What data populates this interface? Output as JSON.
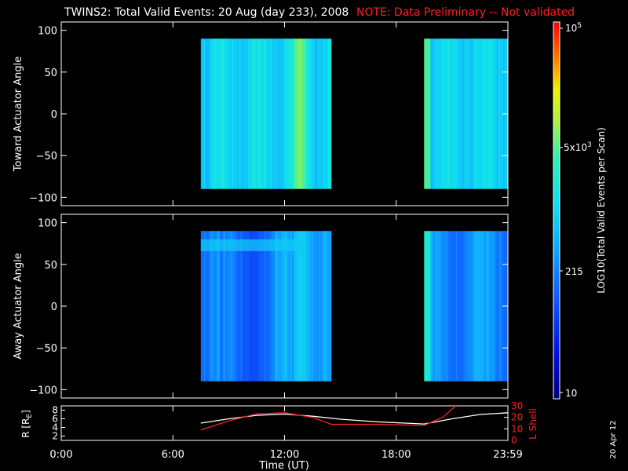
{
  "header": {
    "title": "TWINS2: Total Valid Events: 20 Aug (day 233), 2008",
    "note": "NOTE: Data Preliminary -- Not validated"
  },
  "side_date": "20 Apr 12",
  "colors": {
    "background": "#000000",
    "text": "#ffffff",
    "note": "#ff2020",
    "lshell": "#ff2020",
    "r_line": "#ffffff"
  },
  "chart_data": [
    {
      "type": "heatmap",
      "ylabel": "Toward Actuator Angle",
      "ylim": [
        -110,
        110
      ],
      "yticks": [
        "100",
        "50",
        "0",
        "−50",
        "−100"
      ],
      "xlim": [
        0,
        24
      ],
      "data_blocks": [
        {
          "x": [
            7.5,
            14.5
          ],
          "y": [
            -90,
            90
          ],
          "level": "≈ 1000–2000 events/scan, enhanced near 12:30–13:30"
        },
        {
          "x": [
            19.5,
            24
          ],
          "y": [
            -90,
            90
          ],
          "level": "≈ 1000 events/scan, enhanced near 19:30"
        }
      ],
      "colorbar": {
        "label": "LOG10(Total Valid Events per Scan)",
        "scale": "log",
        "range": [
          10,
          100000
        ],
        "ticks": [
          "10^5",
          "5x10^3",
          "215",
          "10"
        ]
      }
    },
    {
      "type": "heatmap",
      "ylabel": "Away Actuator Angle",
      "ylim": [
        -110,
        110
      ],
      "yticks": [
        "100",
        "50",
        "0",
        "−50",
        "−100"
      ],
      "xlim": [
        0,
        24
      ],
      "data_blocks": [
        {
          "x": [
            7.5,
            14.5
          ],
          "y": [
            -90,
            90
          ],
          "level": "≈ 300–1500 events/scan, band near +75°"
        },
        {
          "x": [
            19.5,
            24
          ],
          "y": [
            -90,
            90
          ],
          "level": "≈ 500–1000 events/scan"
        }
      ]
    },
    {
      "type": "line",
      "xlabel": "Time (UT)",
      "xticks": [
        "0:00",
        "6:00",
        "12:00",
        "18:00",
        "23:59"
      ],
      "ylabel": "R [RE]",
      "ylabel_right": "L Shell",
      "yticks_left": [
        "8",
        "6",
        "4",
        "2"
      ],
      "yticks_right": [
        "30",
        "20",
        "10",
        "0"
      ],
      "ylim": [
        1,
        9
      ],
      "ylim_right": [
        0,
        30
      ],
      "series": [
        {
          "x": [
            7.5,
            9,
            10.5,
            12,
            13.5,
            15,
            17,
            19.5,
            21,
            22.5,
            24
          ],
          "values": [
            5.0,
            6.0,
            6.8,
            7.1,
            6.6,
            5.9,
            5.3,
            4.8,
            6.0,
            7.0,
            7.4
          ]
        },
        {
          "x": [
            7.5,
            9,
            10.5,
            12,
            13.5,
            14.5,
            17,
            19.5,
            20.5,
            21.2
          ],
          "values": [
            9,
            17,
            23,
            24,
            20,
            14,
            14,
            13,
            20,
            30
          ]
        }
      ]
    }
  ]
}
